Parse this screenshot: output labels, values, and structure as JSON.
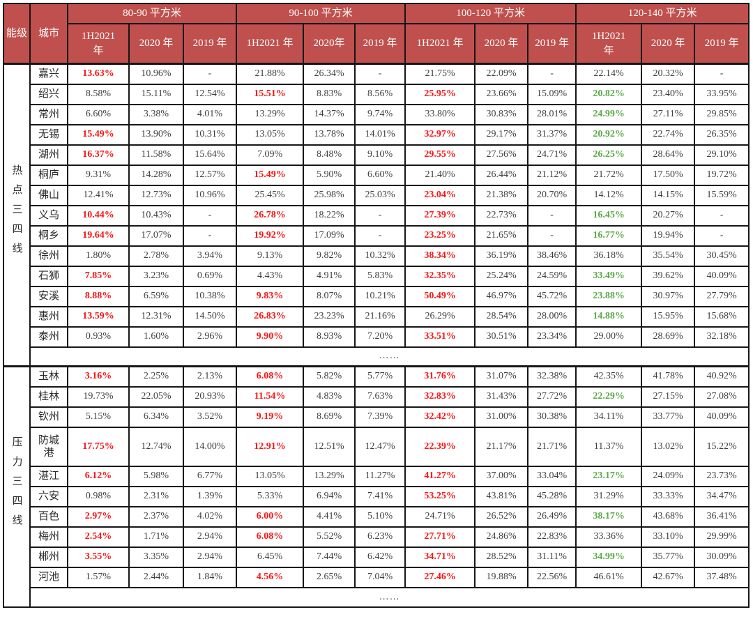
{
  "colors": {
    "header_bg": "#C0504D",
    "highlight_red": "#fb1414",
    "highlight_green": "#5aaa46",
    "grid_line": "#161616",
    "body_text": "#3f3f3f"
  },
  "table": {
    "tier_header": "能级",
    "city_header": "城市",
    "groups": [
      {
        "label": "80-90 平方米",
        "cols": [
          "1H2021 年",
          "2020 年",
          "2019 年"
        ]
      },
      {
        "label": "90-100 平方米",
        "cols": [
          "1H2021 年",
          "2020年",
          "2019 年"
        ]
      },
      {
        "label": "100-120 平方米",
        "cols": [
          "1H2021 年",
          "2020 年",
          "2019 年"
        ]
      },
      {
        "label": "120-140 平方米",
        "cols": [
          "1H2021 年",
          "2020 年",
          "2019 年"
        ]
      }
    ],
    "sections": [
      {
        "tier": "热点三四线",
        "ellipsis": "……",
        "rows": [
          {
            "city": "嘉兴",
            "values": [
              "13.63%|r",
              "10.96%",
              "-",
              "21.88%",
              "26.34%",
              "-",
              "21.75%",
              "22.09%",
              "-",
              "22.14%",
              "20.32%",
              "-"
            ]
          },
          {
            "city": "绍兴",
            "values": [
              "8.58%",
              "15.11%",
              "12.54%",
              "15.51%|r",
              "8.83%",
              "8.56%",
              "25.95%|r",
              "23.66%",
              "15.09%",
              "20.82%|g",
              "23.40%",
              "33.95%"
            ]
          },
          {
            "city": "常州",
            "values": [
              "6.60%",
              "3.38%",
              "4.01%",
              "13.29%",
              "14.37%",
              "9.74%",
              "33.80%",
              "30.83%",
              "28.01%",
              "24.99%|g",
              "27.11%",
              "29.85%"
            ]
          },
          {
            "city": "无锡",
            "values": [
              "15.49%|r",
              "13.90%",
              "10.31%",
              "13.05%",
              "13.78%",
              "14.01%",
              "32.97%|r",
              "29.17%",
              "31.37%",
              "20.92%|g",
              "22.74%",
              "26.35%"
            ]
          },
          {
            "city": "湖州",
            "values": [
              "16.37%|r",
              "11.58%",
              "15.64%",
              "7.09%",
              "8.48%",
              "9.10%",
              "29.55%|r",
              "27.56%",
              "24.71%",
              "26.25%|g",
              "28.64%",
              "29.10%"
            ]
          },
          {
            "city": "桐庐",
            "values": [
              "9.31%",
              "14.28%",
              "12.57%",
              "15.49%|r",
              "5.90%",
              "6.60%",
              "21.40%",
              "26.44%",
              "21.12%",
              "21.72%",
              "17.50%",
              "19.72%"
            ]
          },
          {
            "city": "佛山",
            "values": [
              "12.41%",
              "12.73%",
              "10.96%",
              "25.45%",
              "25.98%",
              "25.03%",
              "23.04%|r",
              "21.38%",
              "20.70%",
              "14.12%",
              "14.15%",
              "15.59%"
            ]
          },
          {
            "city": "义乌",
            "values": [
              "10.44%|r",
              "10.43%",
              "-",
              "26.78%|r",
              "18.22%",
              "-",
              "27.39%|r",
              "22.73%",
              "-",
              "16.45%|g",
              "20.27%",
              "-"
            ]
          },
          {
            "city": "桐乡",
            "values": [
              "19.64%|r",
              "17.07%",
              "-",
              "19.92%|r",
              "17.09%",
              "-",
              "23.25%|r",
              "21.65%",
              "-",
              "16.77%|g",
              "19.94%",
              "-"
            ]
          },
          {
            "city": "徐州",
            "values": [
              "1.80%",
              "2.78%",
              "3.94%",
              "9.13%",
              "9.82%",
              "10.32%",
              "38.34%|r",
              "36.19%",
              "38.46%",
              "36.18%",
              "35.54%",
              "30.45%"
            ]
          },
          {
            "city": "石狮",
            "values": [
              "7.85%|r",
              "3.23%",
              "0.69%",
              "4.43%",
              "4.91%",
              "5.83%",
              "32.35%|r",
              "25.24%",
              "24.59%",
              "33.49%|g",
              "39.62%",
              "40.09%"
            ]
          },
          {
            "city": "安溪",
            "values": [
              "8.88%|r",
              "6.59%",
              "10.38%",
              "9.83%|r",
              "8.07%",
              "10.21%",
              "50.49%|r",
              "46.97%",
              "45.72%",
              "23.88%|g",
              "30.97%",
              "27.79%"
            ]
          },
          {
            "city": "惠州",
            "values": [
              "13.59%|r",
              "12.31%",
              "14.50%",
              "26.83%|r",
              "23.23%",
              "21.16%",
              "26.29%",
              "28.54%",
              "28.00%",
              "14.88%|g",
              "15.95%",
              "15.68%"
            ]
          },
          {
            "city": "泰州",
            "values": [
              "0.93%",
              "1.60%",
              "2.96%",
              "9.90%|r",
              "8.93%",
              "7.20%",
              "33.51%|r",
              "30.51%",
              "23.34%",
              "29.00%",
              "28.69%",
              "32.18%"
            ]
          }
        ]
      },
      {
        "tier": "压力三四线",
        "ellipsis": "……",
        "rows": [
          {
            "city": "玉林",
            "values": [
              "3.16%|r",
              "2.25%",
              "2.13%",
              "6.08%|r",
              "5.82%",
              "5.77%",
              "31.76%|r",
              "31.07%",
              "32.38%",
              "42.35%",
              "41.78%",
              "40.92%"
            ]
          },
          {
            "city": "桂林",
            "values": [
              "19.73%",
              "22.05%",
              "20.93%",
              "11.54%|r",
              "4.83%",
              "7.63%",
              "32.83%|r",
              "31.43%",
              "27.72%",
              "22.29%|g",
              "27.15%",
              "27.08%"
            ]
          },
          {
            "city": "钦州",
            "values": [
              "5.15%",
              "6.34%",
              "3.52%",
              "9.19%|r",
              "8.69%",
              "7.39%",
              "32.42%|r",
              "31.00%",
              "30.38%",
              "34.11%",
              "33.77%",
              "40.09%"
            ]
          },
          {
            "city": "防城港",
            "values": [
              "17.75%|r",
              "12.74%",
              "14.00%",
              "12.91%|r",
              "12.51%",
              "12.47%",
              "22.39%|r",
              "21.17%",
              "21.71%",
              "11.37%",
              "13.02%",
              "15.22%"
            ]
          },
          {
            "city": "湛江",
            "values": [
              "6.12%|r",
              "5.98%",
              "6.77%",
              "13.05%",
              "13.29%",
              "11.27%",
              "41.27%|r",
              "37.00%",
              "33.04%",
              "23.17%|g",
              "24.09%",
              "23.73%"
            ]
          },
          {
            "city": "六安",
            "values": [
              "0.98%",
              "2.31%",
              "1.39%",
              "5.33%",
              "6.94%",
              "7.41%",
              "53.25%|r",
              "43.81%",
              "45.28%",
              "31.29%",
              "33.33%",
              "34.47%"
            ]
          },
          {
            "city": "百色",
            "values": [
              "2.97%|r",
              "2.37%",
              "4.02%",
              "6.00%|r",
              "4.41%",
              "5.10%",
              "24.71%",
              "26.52%",
              "26.49%",
              "38.17%|g",
              "43.68%",
              "36.41%"
            ]
          },
          {
            "city": "梅州",
            "values": [
              "2.54%|r",
              "1.71%",
              "2.94%",
              "6.08%|r",
              "5.52%",
              "6.23%",
              "27.71%|r",
              "24.86%",
              "22.83%",
              "33.36%",
              "33.10%",
              "29.99%"
            ]
          },
          {
            "city": "郴州",
            "values": [
              "3.55%|r",
              "3.35%",
              "2.94%",
              "6.45%",
              "7.44%",
              "6.42%",
              "34.71%|r",
              "28.52%",
              "31.11%",
              "34.99%|g",
              "35.77%",
              "30.09%"
            ]
          },
          {
            "city": "河池",
            "values": [
              "1.57%",
              "2.44%",
              "1.84%",
              "4.56%|r",
              "2.65%",
              "7.04%",
              "27.46%|r",
              "19.88%",
              "22.56%",
              "46.61%",
              "42.67%",
              "37.48%"
            ]
          }
        ]
      }
    ]
  }
}
